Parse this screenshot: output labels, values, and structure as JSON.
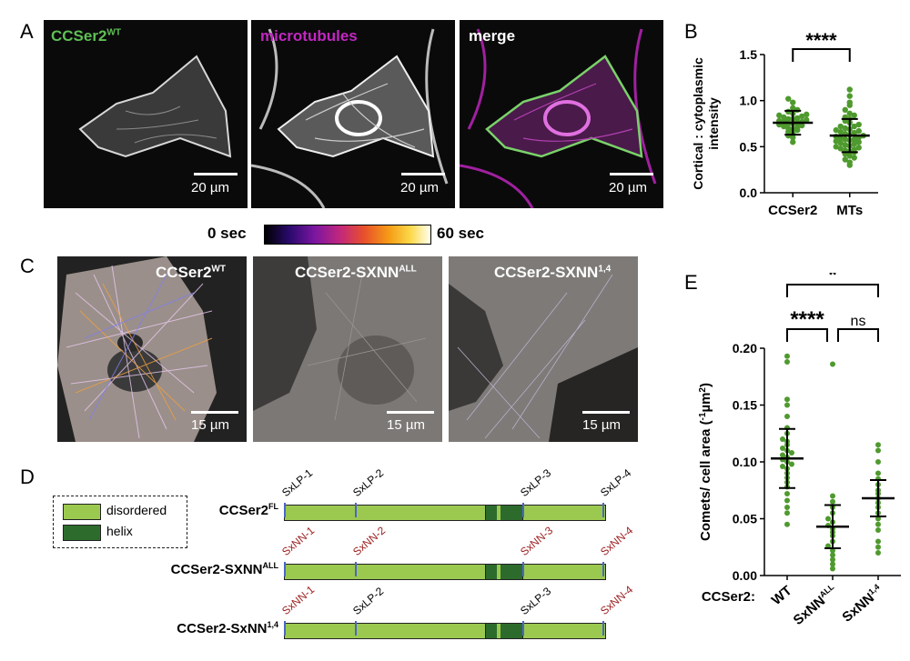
{
  "panels": {
    "A": "A",
    "B": "B",
    "C": "C",
    "D": "D",
    "E": "E"
  },
  "panel_a": {
    "labels": [
      "CCSer2",
      "microtubules",
      "merge"
    ],
    "wt_sup": "WT",
    "label_colors": [
      "#5fbf55",
      "#c227c2",
      "#ffffff"
    ],
    "scale": "20 µm"
  },
  "colorbar": {
    "start": "0 sec",
    "end": "60 sec"
  },
  "panel_c": {
    "labels": [
      {
        "base": "CCSer2",
        "sup": "WT"
      },
      {
        "base": "CCSer2-SXNN",
        "sup": "ALL"
      },
      {
        "base": "CCSer2-SXNN",
        "sup": "1,4"
      }
    ],
    "scale": "15 µm"
  },
  "panel_d": {
    "legend": [
      {
        "label": "disordered",
        "color": "#9bc94f"
      },
      {
        "label": "helix",
        "color": "#2d6b2d"
      }
    ],
    "constructs": [
      {
        "base": "CCSer2",
        "sup": "FL",
        "sites": [
          "SxLP-1",
          "SxLP-2",
          "SxLP-3",
          "SxLP-4"
        ],
        "mutated": [
          false,
          false,
          false,
          false
        ]
      },
      {
        "base": "CCSer2-SXNN",
        "sup": "ALL",
        "sites": [
          "SxNN-1",
          "SxNN-2",
          "SxNN-3",
          "SxNN-4"
        ],
        "mutated": [
          true,
          true,
          true,
          true
        ]
      },
      {
        "base": "CCSer2-SxNN",
        "sup": "1,4",
        "sites": [
          "SxNN-1",
          "SxLP-2",
          "SxLP-3",
          "SxNN-4"
        ],
        "mutated": [
          true,
          false,
          false,
          true
        ]
      }
    ],
    "mutated_color": "#9b1c1c"
  },
  "chart_data": [
    {
      "type": "scatter",
      "panel": "B",
      "ylabel": "Cortical : cytoplasmic intensity",
      "ylim": [
        0,
        1.5
      ],
      "yticks": [
        "0.0",
        "0.5",
        "1.0",
        "1.5"
      ],
      "categories": [
        "CCSer2",
        "MTs"
      ],
      "point_color": "#4f9a2e",
      "series": [
        {
          "name": "CCSer2",
          "mean": 0.76,
          "sd": 0.13,
          "values": [
            0.98,
            0.92,
            0.9,
            0.88,
            0.86,
            0.85,
            0.84,
            0.83,
            0.82,
            0.81,
            0.8,
            0.8,
            0.79,
            0.78,
            0.77,
            0.77,
            0.76,
            0.75,
            0.75,
            0.74,
            0.73,
            0.72,
            0.71,
            0.7,
            0.69,
            0.68,
            0.66,
            0.64,
            0.62,
            0.6,
            0.55,
            1.02
          ]
        },
        {
          "name": "MTs",
          "mean": 0.62,
          "sd": 0.18,
          "values": [
            1.12,
            1.05,
            0.98,
            0.95,
            0.9,
            0.86,
            0.84,
            0.82,
            0.8,
            0.78,
            0.76,
            0.74,
            0.72,
            0.7,
            0.69,
            0.68,
            0.66,
            0.65,
            0.64,
            0.63,
            0.62,
            0.61,
            0.6,
            0.59,
            0.58,
            0.57,
            0.56,
            0.55,
            0.54,
            0.53,
            0.52,
            0.51,
            0.5,
            0.49,
            0.48,
            0.47,
            0.46,
            0.45,
            0.44,
            0.42,
            0.4,
            0.38,
            0.36,
            0.33,
            0.3,
            0.72,
            0.67,
            0.58
          ]
        }
      ],
      "significance": [
        {
          "pair": [
            "CCSer2",
            "MTs"
          ],
          "label": "****"
        }
      ]
    },
    {
      "type": "scatter",
      "panel": "E",
      "ylabel": "Comets/ cell area (-1µm2)",
      "ylabel_parts": {
        "main": "Comets/ cell area (",
        "sup1": "-1",
        "mid": "µm",
        "sup2": "2",
        "end": ")"
      },
      "ylim": [
        0,
        0.2
      ],
      "yticks": [
        "0.00",
        "0.05",
        "0.10",
        "0.15",
        "0.20"
      ],
      "xprefix": "CCSer2:",
      "categories": [
        {
          "base": "WT",
          "sup": ""
        },
        {
          "base": "SxNN",
          "sup": "ALL"
        },
        {
          "base": "SxNN",
          "sup": "1,4"
        }
      ],
      "point_color": "#4f9a2e",
      "series": [
        {
          "name": "WT",
          "mean": 0.103,
          "sd": 0.026,
          "values": [
            0.193,
            0.188,
            0.155,
            0.15,
            0.14,
            0.13,
            0.125,
            0.12,
            0.118,
            0.115,
            0.112,
            0.11,
            0.108,
            0.106,
            0.104,
            0.102,
            0.1,
            0.098,
            0.096,
            0.094,
            0.09,
            0.086,
            0.082,
            0.078,
            0.072,
            0.066,
            0.06,
            0.055,
            0.045
          ]
        },
        {
          "name": "SxNN ALL",
          "mean": 0.043,
          "sd": 0.019,
          "values": [
            0.186,
            0.07,
            0.065,
            0.06,
            0.055,
            0.05,
            0.047,
            0.044,
            0.041,
            0.038,
            0.035,
            0.03,
            0.026,
            0.022,
            0.018,
            0.014,
            0.01,
            0.006
          ]
        },
        {
          "name": "SxNN 1,4",
          "mean": 0.068,
          "sd": 0.016,
          "values": [
            0.115,
            0.11,
            0.1,
            0.09,
            0.085,
            0.08,
            0.075,
            0.072,
            0.068,
            0.064,
            0.06,
            0.055,
            0.05,
            0.045,
            0.04,
            0.03,
            0.025,
            0.02
          ]
        }
      ],
      "significance": [
        {
          "pair": [
            0,
            2
          ],
          "label": "*"
        },
        {
          "pair": [
            0,
            1
          ],
          "label": "****"
        },
        {
          "pair": [
            1,
            2
          ],
          "label": "ns"
        }
      ]
    }
  ]
}
